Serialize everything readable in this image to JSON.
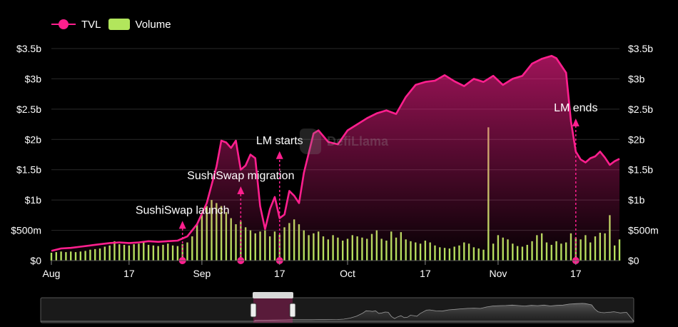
{
  "legend": {
    "tvl_label": "TVL",
    "volume_label": "Volume"
  },
  "watermark": {
    "text": "DefiLlama"
  },
  "colors": {
    "tvl": "#ff1f8e",
    "volume": "#b2e65c",
    "background": "#000000",
    "grid": "#2a2a2a"
  },
  "chart_data": {
    "type": "line",
    "x_start": "2020-08-01",
    "x_end": "2020-11-26",
    "x_ticks": [
      {
        "date": "2020-08-01",
        "label": "Aug"
      },
      {
        "date": "2020-08-17",
        "label": "17"
      },
      {
        "date": "2020-09-01",
        "label": "Sep"
      },
      {
        "date": "2020-09-17",
        "label": "17"
      },
      {
        "date": "2020-10-01",
        "label": "Oct"
      },
      {
        "date": "2020-10-17",
        "label": "17"
      },
      {
        "date": "2020-11-01",
        "label": "Nov"
      },
      {
        "date": "2020-11-17",
        "label": "17"
      }
    ],
    "ylim": [
      0,
      3500000000
    ],
    "y_ticks": [
      {
        "value": 0,
        "label": "$0"
      },
      {
        "value": 500000000,
        "label": "$500m"
      },
      {
        "value": 1000000000,
        "label": "$1b"
      },
      {
        "value": 1500000000,
        "label": "$1.5b"
      },
      {
        "value": 2000000000,
        "label": "$2b"
      },
      {
        "value": 2500000000,
        "label": "$2.5b"
      },
      {
        "value": 3000000000,
        "label": "$3b"
      },
      {
        "value": 3500000000,
        "label": "$3.5b"
      }
    ],
    "grid": true,
    "legend_position": "top-left",
    "series": [
      {
        "name": "TVL",
        "kind": "area-line",
        "points": [
          [
            "2020-08-01",
            160000000
          ],
          [
            "2020-08-03",
            200000000
          ],
          [
            "2020-08-05",
            210000000
          ],
          [
            "2020-08-07",
            230000000
          ],
          [
            "2020-08-09",
            250000000
          ],
          [
            "2020-08-11",
            270000000
          ],
          [
            "2020-08-13",
            290000000
          ],
          [
            "2020-08-15",
            300000000
          ],
          [
            "2020-08-17",
            290000000
          ],
          [
            "2020-08-19",
            300000000
          ],
          [
            "2020-08-21",
            320000000
          ],
          [
            "2020-08-23",
            310000000
          ],
          [
            "2020-08-25",
            320000000
          ],
          [
            "2020-08-27",
            330000000
          ],
          [
            "2020-08-29",
            400000000
          ],
          [
            "2020-08-31",
            600000000
          ],
          [
            "2020-09-02",
            950000000
          ],
          [
            "2020-09-04",
            1550000000
          ],
          [
            "2020-09-05",
            1980000000
          ],
          [
            "2020-09-06",
            1950000000
          ],
          [
            "2020-09-07",
            1860000000
          ],
          [
            "2020-09-08",
            1980000000
          ],
          [
            "2020-09-09",
            1500000000
          ],
          [
            "2020-09-10",
            1570000000
          ],
          [
            "2020-09-11",
            1750000000
          ],
          [
            "2020-09-12",
            1690000000
          ],
          [
            "2020-09-13",
            900000000
          ],
          [
            "2020-09-14",
            520000000
          ],
          [
            "2020-09-15",
            850000000
          ],
          [
            "2020-09-16",
            1050000000
          ],
          [
            "2020-09-17",
            700000000
          ],
          [
            "2020-09-18",
            760000000
          ],
          [
            "2020-09-19",
            1150000000
          ],
          [
            "2020-09-20",
            1070000000
          ],
          [
            "2020-09-21",
            950000000
          ],
          [
            "2020-09-22",
            1450000000
          ],
          [
            "2020-09-24",
            2100000000
          ],
          [
            "2020-09-25",
            2150000000
          ],
          [
            "2020-09-27",
            1960000000
          ],
          [
            "2020-09-29",
            1920000000
          ],
          [
            "2020-10-01",
            2150000000
          ],
          [
            "2020-10-03",
            2250000000
          ],
          [
            "2020-10-05",
            2350000000
          ],
          [
            "2020-10-07",
            2430000000
          ],
          [
            "2020-10-09",
            2480000000
          ],
          [
            "2020-10-11",
            2420000000
          ],
          [
            "2020-10-13",
            2700000000
          ],
          [
            "2020-10-15",
            2900000000
          ],
          [
            "2020-10-17",
            2950000000
          ],
          [
            "2020-10-19",
            2970000000
          ],
          [
            "2020-10-21",
            3060000000
          ],
          [
            "2020-10-23",
            2960000000
          ],
          [
            "2020-10-25",
            2880000000
          ],
          [
            "2020-10-27",
            3000000000
          ],
          [
            "2020-10-29",
            2950000000
          ],
          [
            "2020-10-31",
            3050000000
          ],
          [
            "2020-11-02",
            2900000000
          ],
          [
            "2020-11-04",
            3000000000
          ],
          [
            "2020-11-06",
            3050000000
          ],
          [
            "2020-11-08",
            3250000000
          ],
          [
            "2020-11-10",
            3330000000
          ],
          [
            "2020-11-12",
            3380000000
          ],
          [
            "2020-11-13",
            3340000000
          ],
          [
            "2020-11-15",
            3100000000
          ],
          [
            "2020-11-16",
            2300000000
          ],
          [
            "2020-11-17",
            1800000000
          ],
          [
            "2020-11-18",
            1670000000
          ],
          [
            "2020-11-19",
            1620000000
          ],
          [
            "2020-11-20",
            1690000000
          ],
          [
            "2020-11-21",
            1720000000
          ],
          [
            "2020-11-22",
            1800000000
          ],
          [
            "2020-11-23",
            1700000000
          ],
          [
            "2020-11-24",
            1580000000
          ],
          [
            "2020-11-25",
            1640000000
          ],
          [
            "2020-11-26",
            1680000000
          ]
        ]
      },
      {
        "name": "Volume",
        "kind": "bar",
        "points": [
          [
            "2020-08-01",
            130000000
          ],
          [
            "2020-08-02",
            140000000
          ],
          [
            "2020-08-03",
            150000000
          ],
          [
            "2020-08-04",
            140000000
          ],
          [
            "2020-08-05",
            150000000
          ],
          [
            "2020-08-06",
            140000000
          ],
          [
            "2020-08-07",
            150000000
          ],
          [
            "2020-08-08",
            160000000
          ],
          [
            "2020-08-09",
            180000000
          ],
          [
            "2020-08-10",
            190000000
          ],
          [
            "2020-08-11",
            200000000
          ],
          [
            "2020-08-12",
            230000000
          ],
          [
            "2020-08-13",
            250000000
          ],
          [
            "2020-08-14",
            320000000
          ],
          [
            "2020-08-15",
            270000000
          ],
          [
            "2020-08-16",
            260000000
          ],
          [
            "2020-08-17",
            250000000
          ],
          [
            "2020-08-18",
            270000000
          ],
          [
            "2020-08-19",
            280000000
          ],
          [
            "2020-08-20",
            300000000
          ],
          [
            "2020-08-21",
            260000000
          ],
          [
            "2020-08-22",
            250000000
          ],
          [
            "2020-08-23",
            240000000
          ],
          [
            "2020-08-24",
            260000000
          ],
          [
            "2020-08-25",
            280000000
          ],
          [
            "2020-08-26",
            250000000
          ],
          [
            "2020-08-27",
            240000000
          ],
          [
            "2020-08-28",
            270000000
          ],
          [
            "2020-08-29",
            300000000
          ],
          [
            "2020-08-30",
            400000000
          ],
          [
            "2020-08-31",
            600000000
          ],
          [
            "2020-09-01",
            750000000
          ],
          [
            "2020-09-02",
            900000000
          ],
          [
            "2020-09-03",
            1000000000
          ],
          [
            "2020-09-04",
            950000000
          ],
          [
            "2020-09-05",
            900000000
          ],
          [
            "2020-09-06",
            800000000
          ],
          [
            "2020-09-07",
            700000000
          ],
          [
            "2020-09-08",
            600000000
          ],
          [
            "2020-09-09",
            650000000
          ],
          [
            "2020-09-10",
            550000000
          ],
          [
            "2020-09-11",
            500000000
          ],
          [
            "2020-09-12",
            450000000
          ],
          [
            "2020-09-13",
            480000000
          ],
          [
            "2020-09-14",
            500000000
          ],
          [
            "2020-09-15",
            400000000
          ],
          [
            "2020-09-16",
            480000000
          ],
          [
            "2020-09-17",
            430000000
          ],
          [
            "2020-09-18",
            550000000
          ],
          [
            "2020-09-19",
            620000000
          ],
          [
            "2020-09-20",
            680000000
          ],
          [
            "2020-09-21",
            600000000
          ],
          [
            "2020-09-22",
            500000000
          ],
          [
            "2020-09-23",
            420000000
          ],
          [
            "2020-09-24",
            450000000
          ],
          [
            "2020-09-25",
            480000000
          ],
          [
            "2020-09-26",
            400000000
          ],
          [
            "2020-09-27",
            350000000
          ],
          [
            "2020-09-28",
            420000000
          ],
          [
            "2020-09-29",
            380000000
          ],
          [
            "2020-09-30",
            330000000
          ],
          [
            "2020-10-01",
            360000000
          ],
          [
            "2020-10-02",
            420000000
          ],
          [
            "2020-10-03",
            400000000
          ],
          [
            "2020-10-04",
            380000000
          ],
          [
            "2020-10-05",
            360000000
          ],
          [
            "2020-10-06",
            440000000
          ],
          [
            "2020-10-07",
            500000000
          ],
          [
            "2020-10-08",
            360000000
          ],
          [
            "2020-10-09",
            330000000
          ],
          [
            "2020-10-10",
            480000000
          ],
          [
            "2020-10-11",
            380000000
          ],
          [
            "2020-10-12",
            470000000
          ],
          [
            "2020-10-13",
            350000000
          ],
          [
            "2020-10-14",
            320000000
          ],
          [
            "2020-10-15",
            300000000
          ],
          [
            "2020-10-16",
            280000000
          ],
          [
            "2020-10-17",
            330000000
          ],
          [
            "2020-10-18",
            300000000
          ],
          [
            "2020-10-19",
            250000000
          ],
          [
            "2020-10-20",
            220000000
          ],
          [
            "2020-10-21",
            210000000
          ],
          [
            "2020-10-22",
            200000000
          ],
          [
            "2020-10-23",
            230000000
          ],
          [
            "2020-10-24",
            250000000
          ],
          [
            "2020-10-25",
            300000000
          ],
          [
            "2020-10-26",
            280000000
          ],
          [
            "2020-10-27",
            220000000
          ],
          [
            "2020-10-28",
            200000000
          ],
          [
            "2020-10-29",
            180000000
          ],
          [
            "2020-10-30",
            2200000000
          ],
          [
            "2020-10-31",
            280000000
          ],
          [
            "2020-11-01",
            420000000
          ],
          [
            "2020-11-02",
            380000000
          ],
          [
            "2020-11-03",
            350000000
          ],
          [
            "2020-11-04",
            280000000
          ],
          [
            "2020-11-05",
            240000000
          ],
          [
            "2020-11-06",
            230000000
          ],
          [
            "2020-11-07",
            260000000
          ],
          [
            "2020-11-08",
            320000000
          ],
          [
            "2020-11-09",
            420000000
          ],
          [
            "2020-11-10",
            450000000
          ],
          [
            "2020-11-11",
            300000000
          ],
          [
            "2020-11-12",
            260000000
          ],
          [
            "2020-11-13",
            320000000
          ],
          [
            "2020-11-14",
            280000000
          ],
          [
            "2020-11-15",
            300000000
          ],
          [
            "2020-11-16",
            450000000
          ],
          [
            "2020-11-17",
            380000000
          ],
          [
            "2020-11-18",
            350000000
          ],
          [
            "2020-11-19",
            420000000
          ],
          [
            "2020-11-20",
            300000000
          ],
          [
            "2020-11-21",
            400000000
          ],
          [
            "2020-11-22",
            460000000
          ],
          [
            "2020-11-23",
            450000000
          ],
          [
            "2020-11-24",
            750000000
          ],
          [
            "2020-11-25",
            250000000
          ],
          [
            "2020-11-26",
            350000000
          ]
        ]
      }
    ],
    "annotations": [
      {
        "date": "2020-08-28",
        "text": "SushiSwap launch",
        "label_value": 750000000,
        "text_align": "center"
      },
      {
        "date": "2020-09-09",
        "text": "SushiSwap migration",
        "label_value": 1320000000,
        "text_align": "center"
      },
      {
        "date": "2020-09-17",
        "text": "LM starts",
        "label_value": 1900000000,
        "text_align": "right"
      },
      {
        "date": "2020-11-17",
        "text": "LM ends",
        "label_value": 2440000000,
        "text_align": "center"
      }
    ]
  }
}
